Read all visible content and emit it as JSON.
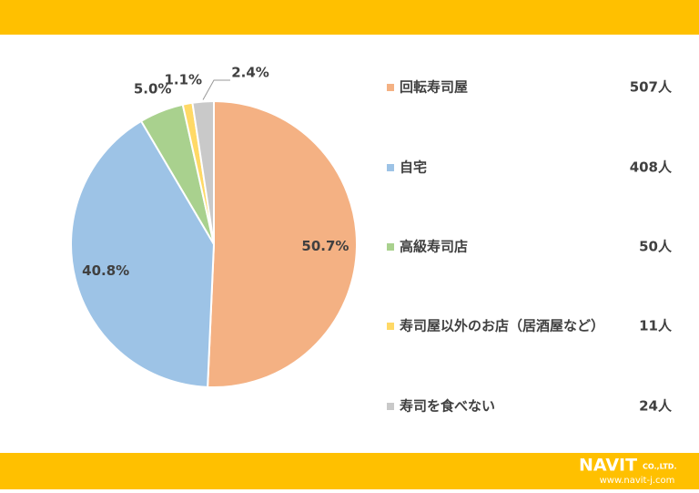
{
  "chart_data": {
    "type": "pie",
    "categories": [
      "回転寿司屋",
      "自宅",
      "高級寿司店",
      "寿司屋以外のお店（居酒屋など）",
      "寿司を食べない"
    ],
    "values": [
      50.7,
      40.8,
      5.0,
      1.1,
      2.4
    ],
    "value_labels": [
      "50.7%",
      "40.8%",
      "5.0%",
      "1.1%",
      "2.4%"
    ],
    "count_labels": [
      "507人",
      "408人",
      "50人",
      "11人",
      "24人"
    ],
    "colors": [
      "#F4B183",
      "#9DC3E6",
      "#A9D18E",
      "#FFD966",
      "#C9C9C9"
    ],
    "legend": "right"
  },
  "footer": {
    "logo": "NAVIT",
    "company": "CO.,LTD.",
    "url": "www.navit-j.com"
  }
}
